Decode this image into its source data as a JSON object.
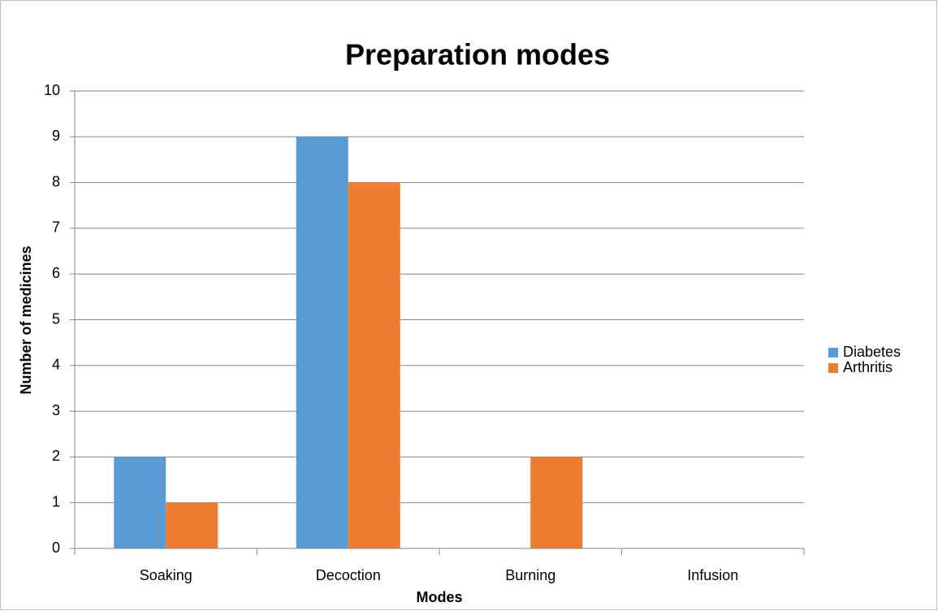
{
  "chart_data": {
    "type": "bar",
    "title": "Preparation modes",
    "x_label": "Modes",
    "y_label": "Number of medicines",
    "categories": [
      "Soaking",
      "Decoction",
      "Burning",
      "Infusion"
    ],
    "series": [
      {
        "name": "Diabetes",
        "color": "#5b9bd5",
        "values": [
          2,
          9,
          0,
          0
        ]
      },
      {
        "name": "Arthritis",
        "color": "#ed7d31",
        "values": [
          1,
          8,
          2,
          0
        ]
      }
    ],
    "ylim": [
      0,
      10
    ],
    "yticks": [
      0,
      1,
      2,
      3,
      4,
      5,
      6,
      7,
      8,
      9,
      10
    ],
    "grid": true,
    "legend": "right"
  }
}
